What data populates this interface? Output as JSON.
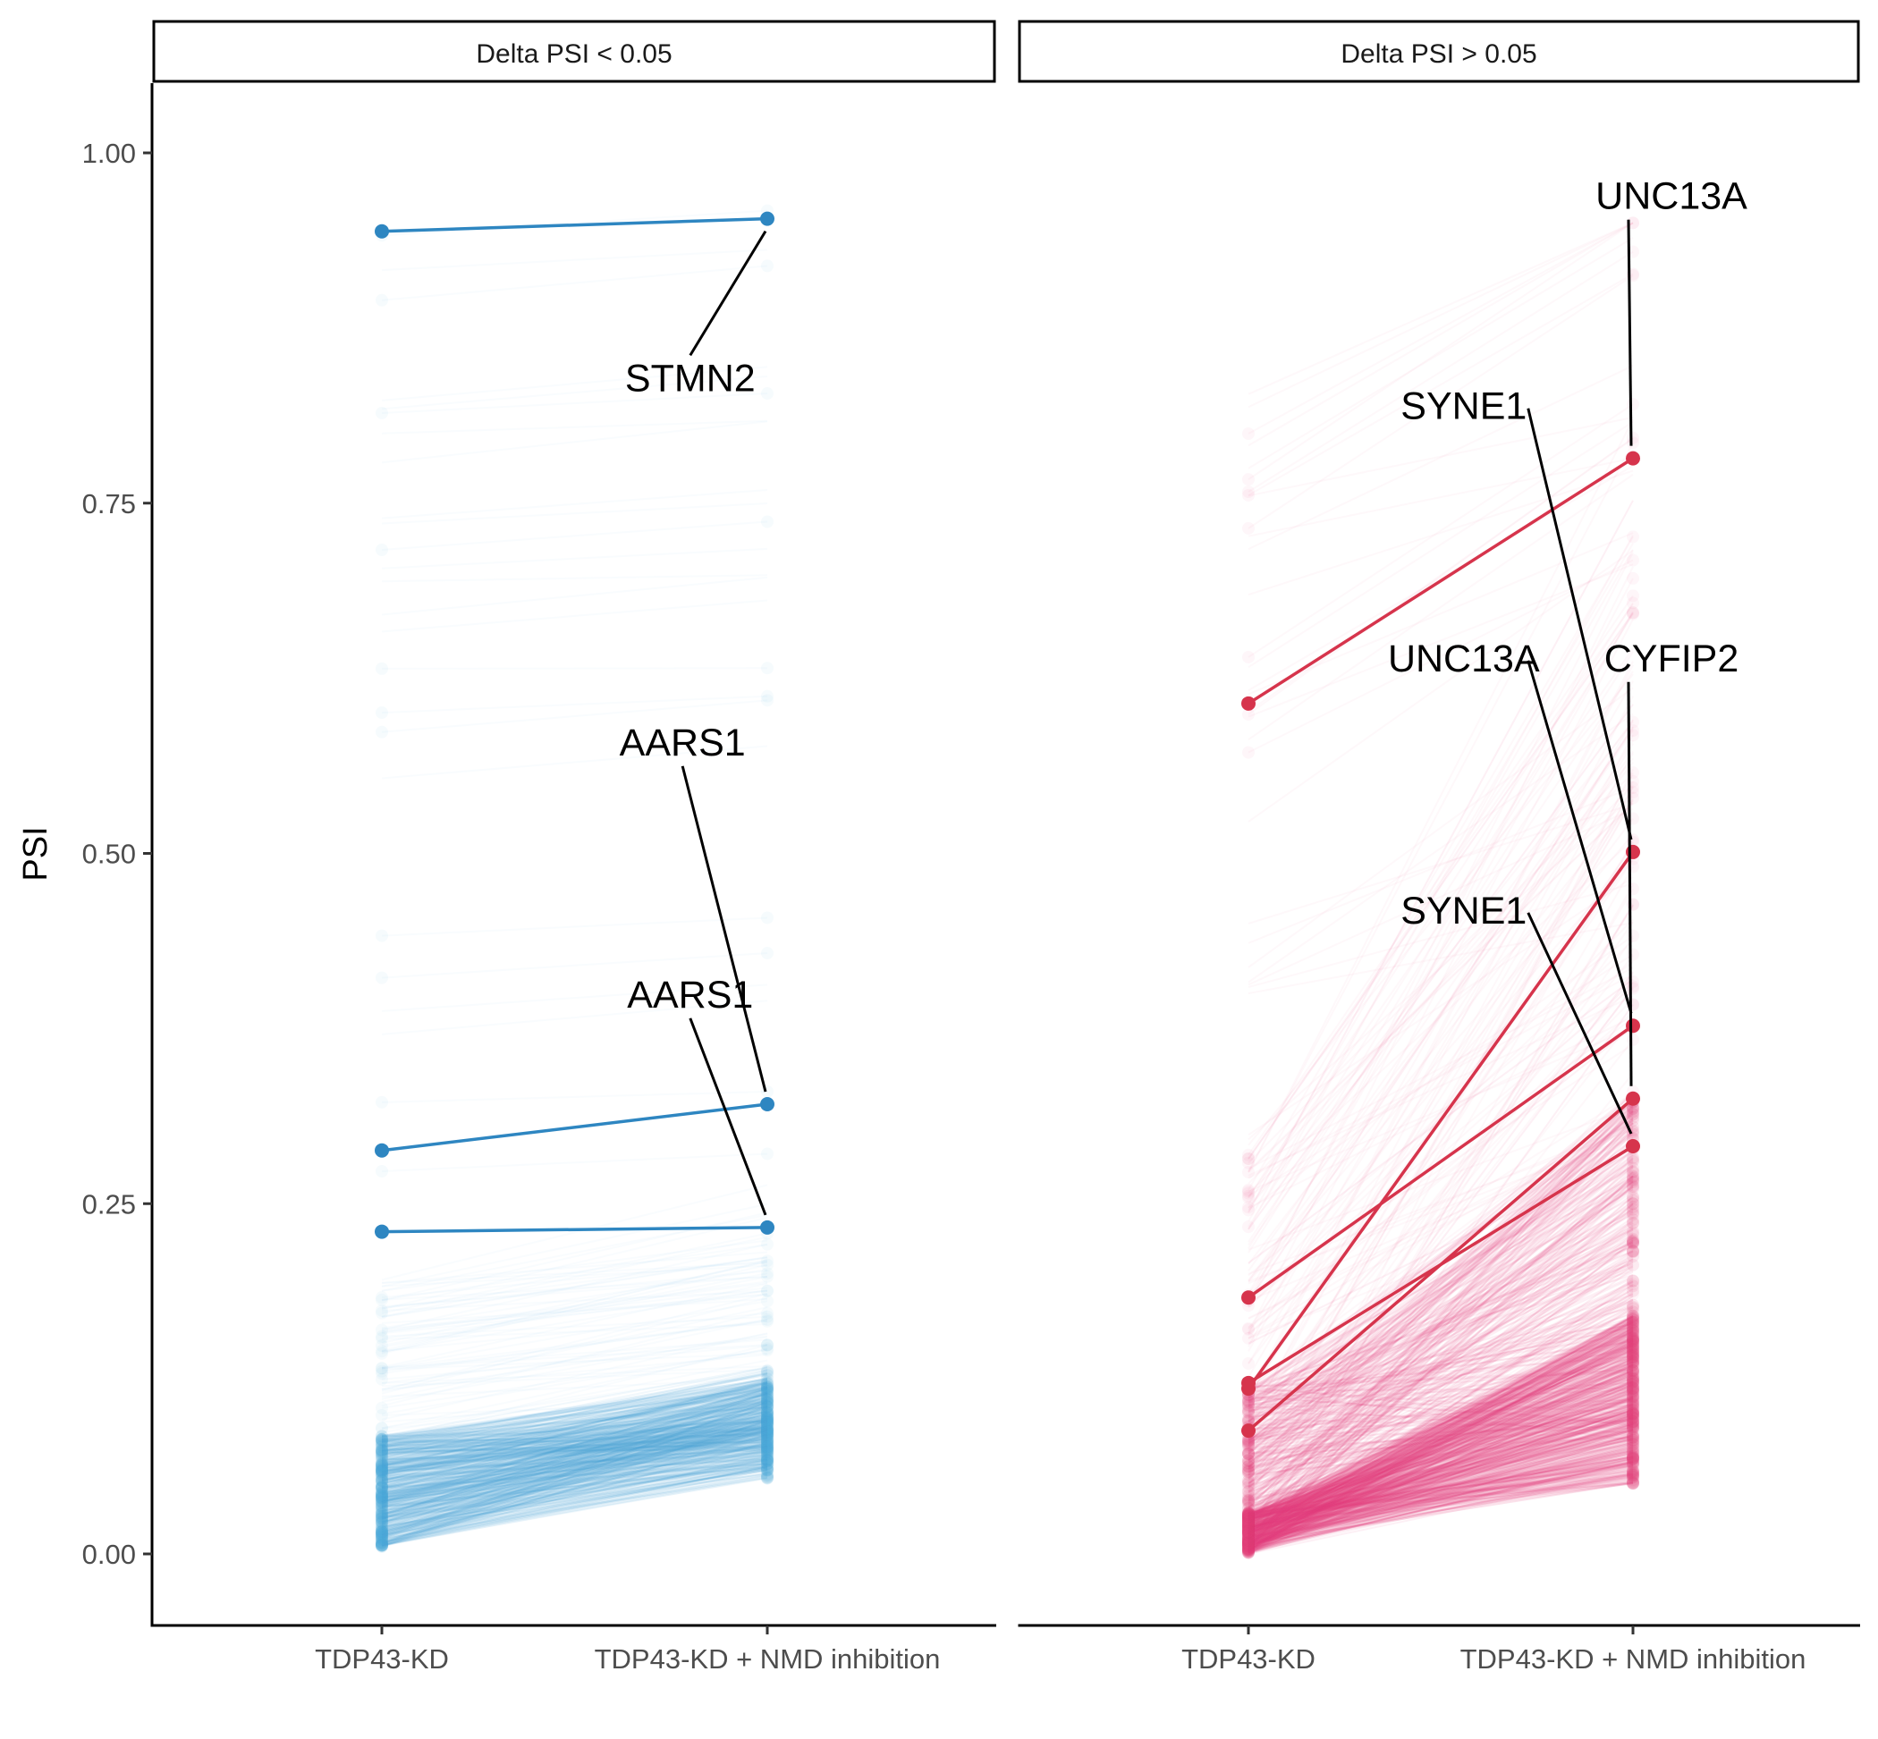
{
  "chart_data": {
    "type": "line",
    "ylabel": "PSI",
    "xlabel": "",
    "x_categories": [
      "TDP43-KD",
      "TDP43-KD + NMD inhibition"
    ],
    "yticks": [
      0.0,
      0.25,
      0.5,
      0.75,
      1.0
    ],
    "ytick_labels": [
      "0.00",
      "0.25",
      "0.50",
      "0.75",
      "1.00"
    ],
    "ylim": [
      -0.05,
      1.05
    ],
    "grid": false,
    "panels": [
      {
        "strip": "Delta PSI < 0.05",
        "color": "#2e86c1",
        "background_color": "#4aa8dc",
        "highlighted": [
          {
            "gene": "STMN2",
            "values": [
              0.944,
              0.953
            ],
            "label_anchor": [
              0.8,
              0.83
            ]
          },
          {
            "gene": "AARS1",
            "values": [
              0.288,
              0.321
            ],
            "label_anchor": [
              0.78,
              0.57
            ]
          },
          {
            "gene": "AARS1",
            "values": [
              0.23,
              0.233
            ],
            "label_anchor": [
              0.8,
              0.39
            ]
          }
        ]
      },
      {
        "strip": "Delta PSI > 0.05",
        "color": "#d6344c",
        "background_color": "#e0407a",
        "highlighted": [
          {
            "gene": "UNC13A",
            "values": [
              0.607,
              0.782
            ],
            "label_anchor": [
              1.1,
              0.96
            ]
          },
          {
            "gene": "SYNE1",
            "values": [
              0.118,
              0.501
            ],
            "label_anchor": [
              0.56,
              0.81
            ]
          },
          {
            "gene": "UNC13A",
            "values": [
              0.183,
              0.377
            ],
            "label_anchor": [
              0.56,
              0.63
            ]
          },
          {
            "gene": "CYFIP2",
            "values": [
              0.088,
              0.325
            ],
            "label_anchor": [
              1.1,
              0.63
            ]
          },
          {
            "gene": "SYNE1",
            "values": [
              0.122,
              0.291
            ],
            "label_anchor": [
              0.56,
              0.45
            ]
          }
        ]
      }
    ]
  }
}
